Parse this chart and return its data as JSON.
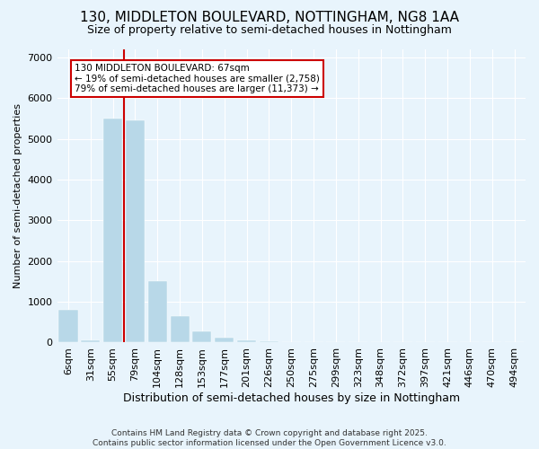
{
  "title": "130, MIDDLETON BOULEVARD, NOTTINGHAM, NG8 1AA",
  "subtitle": "Size of property relative to semi-detached houses in Nottingham",
  "xlabel": "Distribution of semi-detached houses by size in Nottingham",
  "ylabel": "Number of semi-detached properties",
  "categories": [
    "6sqm",
    "31sqm",
    "55sqm",
    "79sqm",
    "104sqm",
    "128sqm",
    "153sqm",
    "177sqm",
    "201sqm",
    "226sqm",
    "250sqm",
    "275sqm",
    "299sqm",
    "323sqm",
    "348sqm",
    "372sqm",
    "397sqm",
    "421sqm",
    "446sqm",
    "470sqm",
    "494sqm"
  ],
  "values": [
    800,
    50,
    5500,
    5450,
    1500,
    650,
    280,
    130,
    50,
    30,
    10,
    0,
    0,
    0,
    0,
    0,
    0,
    0,
    0,
    0,
    0
  ],
  "bar_color": "#b8d8e8",
  "vline_x": 2.5,
  "annotation_text": "130 MIDDLETON BOULEVARD: 67sqm\n← 19% of semi-detached houses are smaller (2,758)\n79% of semi-detached houses are larger (11,373) →",
  "vline_color": "#cc0000",
  "annotation_box_edgecolor": "#cc0000",
  "background_color": "#e8f4fc",
  "plot_bg_color": "#e8f4fc",
  "ylim": [
    0,
    7200
  ],
  "yticks": [
    0,
    1000,
    2000,
    3000,
    4000,
    5000,
    6000,
    7000
  ],
  "footer_line1": "Contains HM Land Registry data © Crown copyright and database right 2025.",
  "footer_line2": "Contains public sector information licensed under the Open Government Licence v3.0.",
  "title_fontsize": 11,
  "subtitle_fontsize": 9,
  "xlabel_fontsize": 9,
  "ylabel_fontsize": 8,
  "tick_fontsize": 8,
  "annot_fontsize": 7.5
}
